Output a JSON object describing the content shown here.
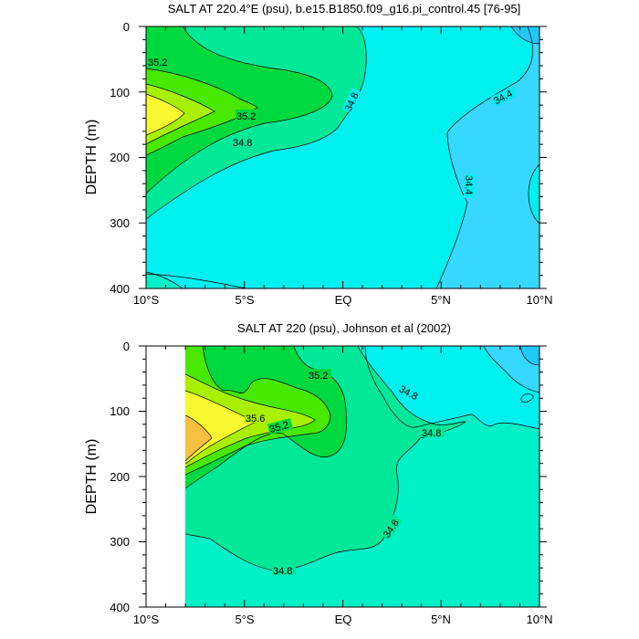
{
  "chart_data": [
    {
      "type": "contour",
      "title": "SALT AT 220.4°E (psu), b.e15.B1850.f09_g16.pi_control.45 [76-95]",
      "ylabel": "DEPTH (m)",
      "xlim": [
        -10,
        10
      ],
      "ylim": [
        0,
        400
      ],
      "y_inverted": true,
      "x_ticks": [
        "10°S",
        "5°S",
        "EQ",
        "5°N",
        "10°N"
      ],
      "y_ticks": [
        "0",
        "100",
        "200",
        "300",
        "400"
      ],
      "contour_labels": [
        "35.2",
        "35.2",
        "34.8",
        "34.8",
        "34.4",
        "34.4"
      ],
      "colors": {
        "lt_34_4": "#36d8ff",
        "34_4_34_6": "#00f0f0",
        "34_6_34_8": "#00f0c8",
        "34_8_35_0": "#00e898",
        "35_0_35_2": "#00d840",
        "35_2_35_4": "#48e800",
        "35_4_35_6": "#a8f000",
        "35_6_35_8": "#f8f830",
        "gt_35_8": "#f8c040"
      }
    },
    {
      "type": "contour",
      "title": "SALT AT 220 (psu), Johnson et al (2002)",
      "ylabel": "DEPTH (m)",
      "xlim": [
        -10,
        10
      ],
      "ylim": [
        0,
        400
      ],
      "y_inverted": true,
      "data_x_range": [
        -8,
        10
      ],
      "x_ticks": [
        "10°S",
        "5°S",
        "EQ",
        "5°N",
        "10°N"
      ],
      "y_ticks": [
        "0",
        "100",
        "200",
        "300",
        "400"
      ],
      "contour_labels": [
        "35.2",
        "35.6",
        "35.2",
        "34.8",
        "34.8",
        "34.8",
        "34.8"
      ]
    }
  ]
}
